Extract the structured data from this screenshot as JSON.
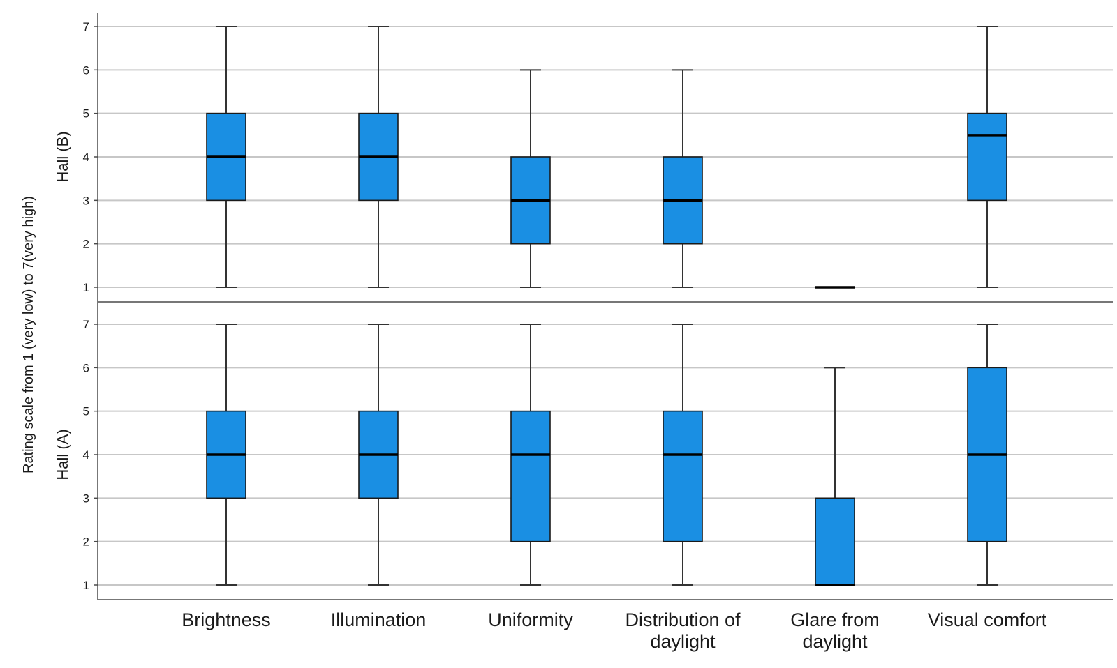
{
  "chart_data": {
    "type": "boxplot",
    "ylabel": "Rating scale from 1 (very low) to 7(very high)",
    "ylim": [
      1,
      7
    ],
    "yticks": [
      "1",
      "2",
      "3",
      "4",
      "5",
      "6",
      "7"
    ],
    "grid": true,
    "box_color": "#1a8fe3",
    "categories": [
      [
        "Brightness"
      ],
      [
        "Illumination"
      ],
      [
        "Uniformity"
      ],
      [
        "Distribution of",
        "daylight"
      ],
      [
        "Glare from",
        "daylight"
      ],
      [
        "Visual comfort"
      ]
    ],
    "panels": [
      {
        "label": "Hall (B)",
        "boxes": [
          {
            "min": 1,
            "q1": 3,
            "median": 4,
            "q3": 5,
            "max": 7
          },
          {
            "min": 1,
            "q1": 3,
            "median": 4,
            "q3": 5,
            "max": 7
          },
          {
            "min": 1,
            "q1": 2,
            "median": 3,
            "q3": 4,
            "max": 6
          },
          {
            "min": 1,
            "q1": 2,
            "median": 3,
            "q3": 4,
            "max": 6
          },
          {
            "min": 1,
            "q1": 1,
            "median": 1,
            "q3": 1,
            "max": 1
          },
          {
            "min": 1,
            "q1": 3,
            "median": 4.5,
            "q3": 5,
            "max": 7
          }
        ]
      },
      {
        "label": "Hall (A)",
        "boxes": [
          {
            "min": 1,
            "q1": 3,
            "median": 4,
            "q3": 5,
            "max": 7
          },
          {
            "min": 1,
            "q1": 3,
            "median": 4,
            "q3": 5,
            "max": 7
          },
          {
            "min": 1,
            "q1": 2,
            "median": 4,
            "q3": 5,
            "max": 7
          },
          {
            "min": 1,
            "q1": 2,
            "median": 4,
            "q3": 5,
            "max": 7
          },
          {
            "min": 1,
            "q1": 1,
            "median": 1,
            "q3": 3,
            "max": 6
          },
          {
            "min": 1,
            "q1": 2,
            "median": 4,
            "q3": 6,
            "max": 7
          }
        ]
      }
    ]
  }
}
